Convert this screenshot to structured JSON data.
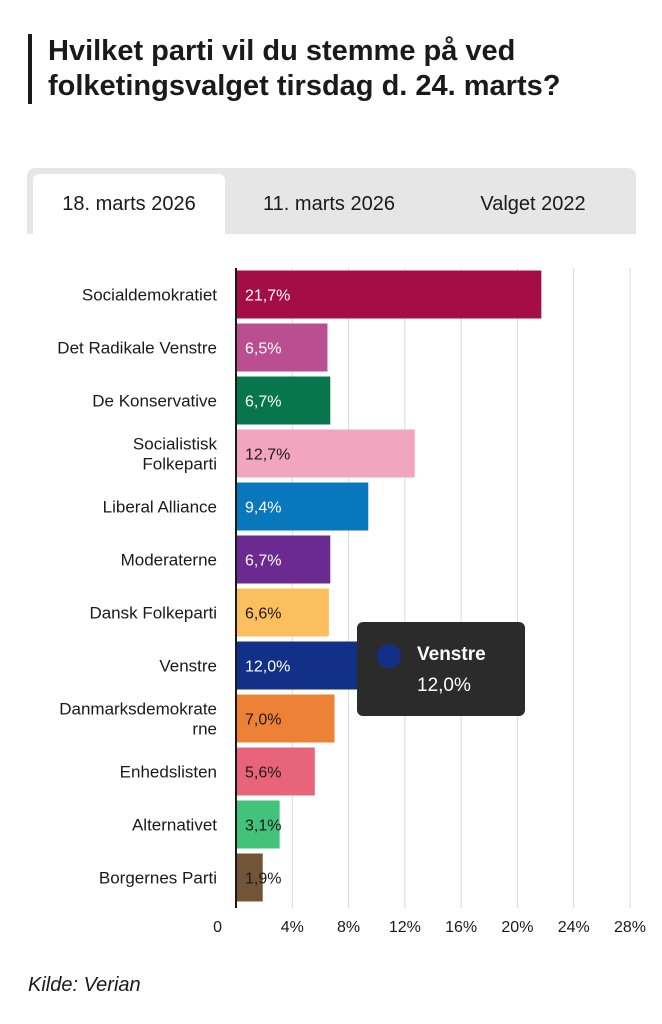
{
  "title": "Hvilket parti vil du stemme på ved folketingsvalget tirsdag d. 24. marts?",
  "tabs": [
    {
      "label": "18. marts 2026",
      "active": true
    },
    {
      "label": "11. marts 2026",
      "active": false
    },
    {
      "label": "Valget 2022",
      "active": false
    }
  ],
  "chart_data": {
    "type": "bar",
    "orientation": "horizontal",
    "title": "Hvilket parti vil du stemme på ved folketingsvalget tirsdag d. 24. marts?",
    "categories": [
      "Socialdemokratiet",
      "Det Radikale Venstre",
      "De Konservative",
      "Socialistisk Folkeparti",
      "Liberal Alliance",
      "Moderaterne",
      "Dansk Folkeparti",
      "Venstre",
      "Danmarksdemokraterne",
      "Enhedslisten",
      "Alternativet",
      "Borgernes Parti"
    ],
    "category_lines": [
      [
        "Socialdemokratiet"
      ],
      [
        "Det Radikale Venstre"
      ],
      [
        "De Konservative"
      ],
      [
        "Socialistisk",
        "Folkeparti"
      ],
      [
        "Liberal Alliance"
      ],
      [
        "Moderaterne"
      ],
      [
        "Dansk Folkeparti"
      ],
      [
        "Venstre"
      ],
      [
        "Danmarksdemokrate",
        "rne"
      ],
      [
        "Enhedslisten"
      ],
      [
        "Alternativet"
      ],
      [
        "Borgernes Parti"
      ]
    ],
    "values": [
      21.7,
      6.5,
      6.7,
      12.7,
      9.4,
      6.7,
      6.6,
      12.0,
      7.0,
      5.6,
      3.1,
      1.9
    ],
    "value_labels": [
      "21,7%",
      "6,5%",
      "6,7%",
      "12,7%",
      "9,4%",
      "6,7%",
      "6,6%",
      "12,0%",
      "7,0%",
      "5,6%",
      "3,1%",
      "1,9%"
    ],
    "colors": [
      "#a50d47",
      "#b94f91",
      "#08764d",
      "#f2a5bf",
      "#0877bc",
      "#6b2a8f",
      "#fcbf5d",
      "#123087",
      "#ed8136",
      "#e8647a",
      "#42c27a",
      "#725537"
    ],
    "label_colors": [
      "#ffffff",
      "#ffffff",
      "#ffffff",
      "#1a1a1a",
      "#ffffff",
      "#ffffff",
      "#1a1a1a",
      "#ffffff",
      "#1a1a1a",
      "#1a1a1a",
      "#1a1a1a",
      "#1a1a1a"
    ],
    "xlim": [
      0,
      28
    ],
    "xticks": [
      0,
      4,
      8,
      12,
      16,
      20,
      24,
      28
    ],
    "xtick_labels": [
      "0",
      "4%",
      "8%",
      "12%",
      "16%",
      "20%",
      "24%",
      "28%"
    ],
    "grid": true
  },
  "tooltip": {
    "name": "Venstre",
    "value": "12,0%",
    "color": "#123087"
  },
  "source": "Kilde: Verian"
}
